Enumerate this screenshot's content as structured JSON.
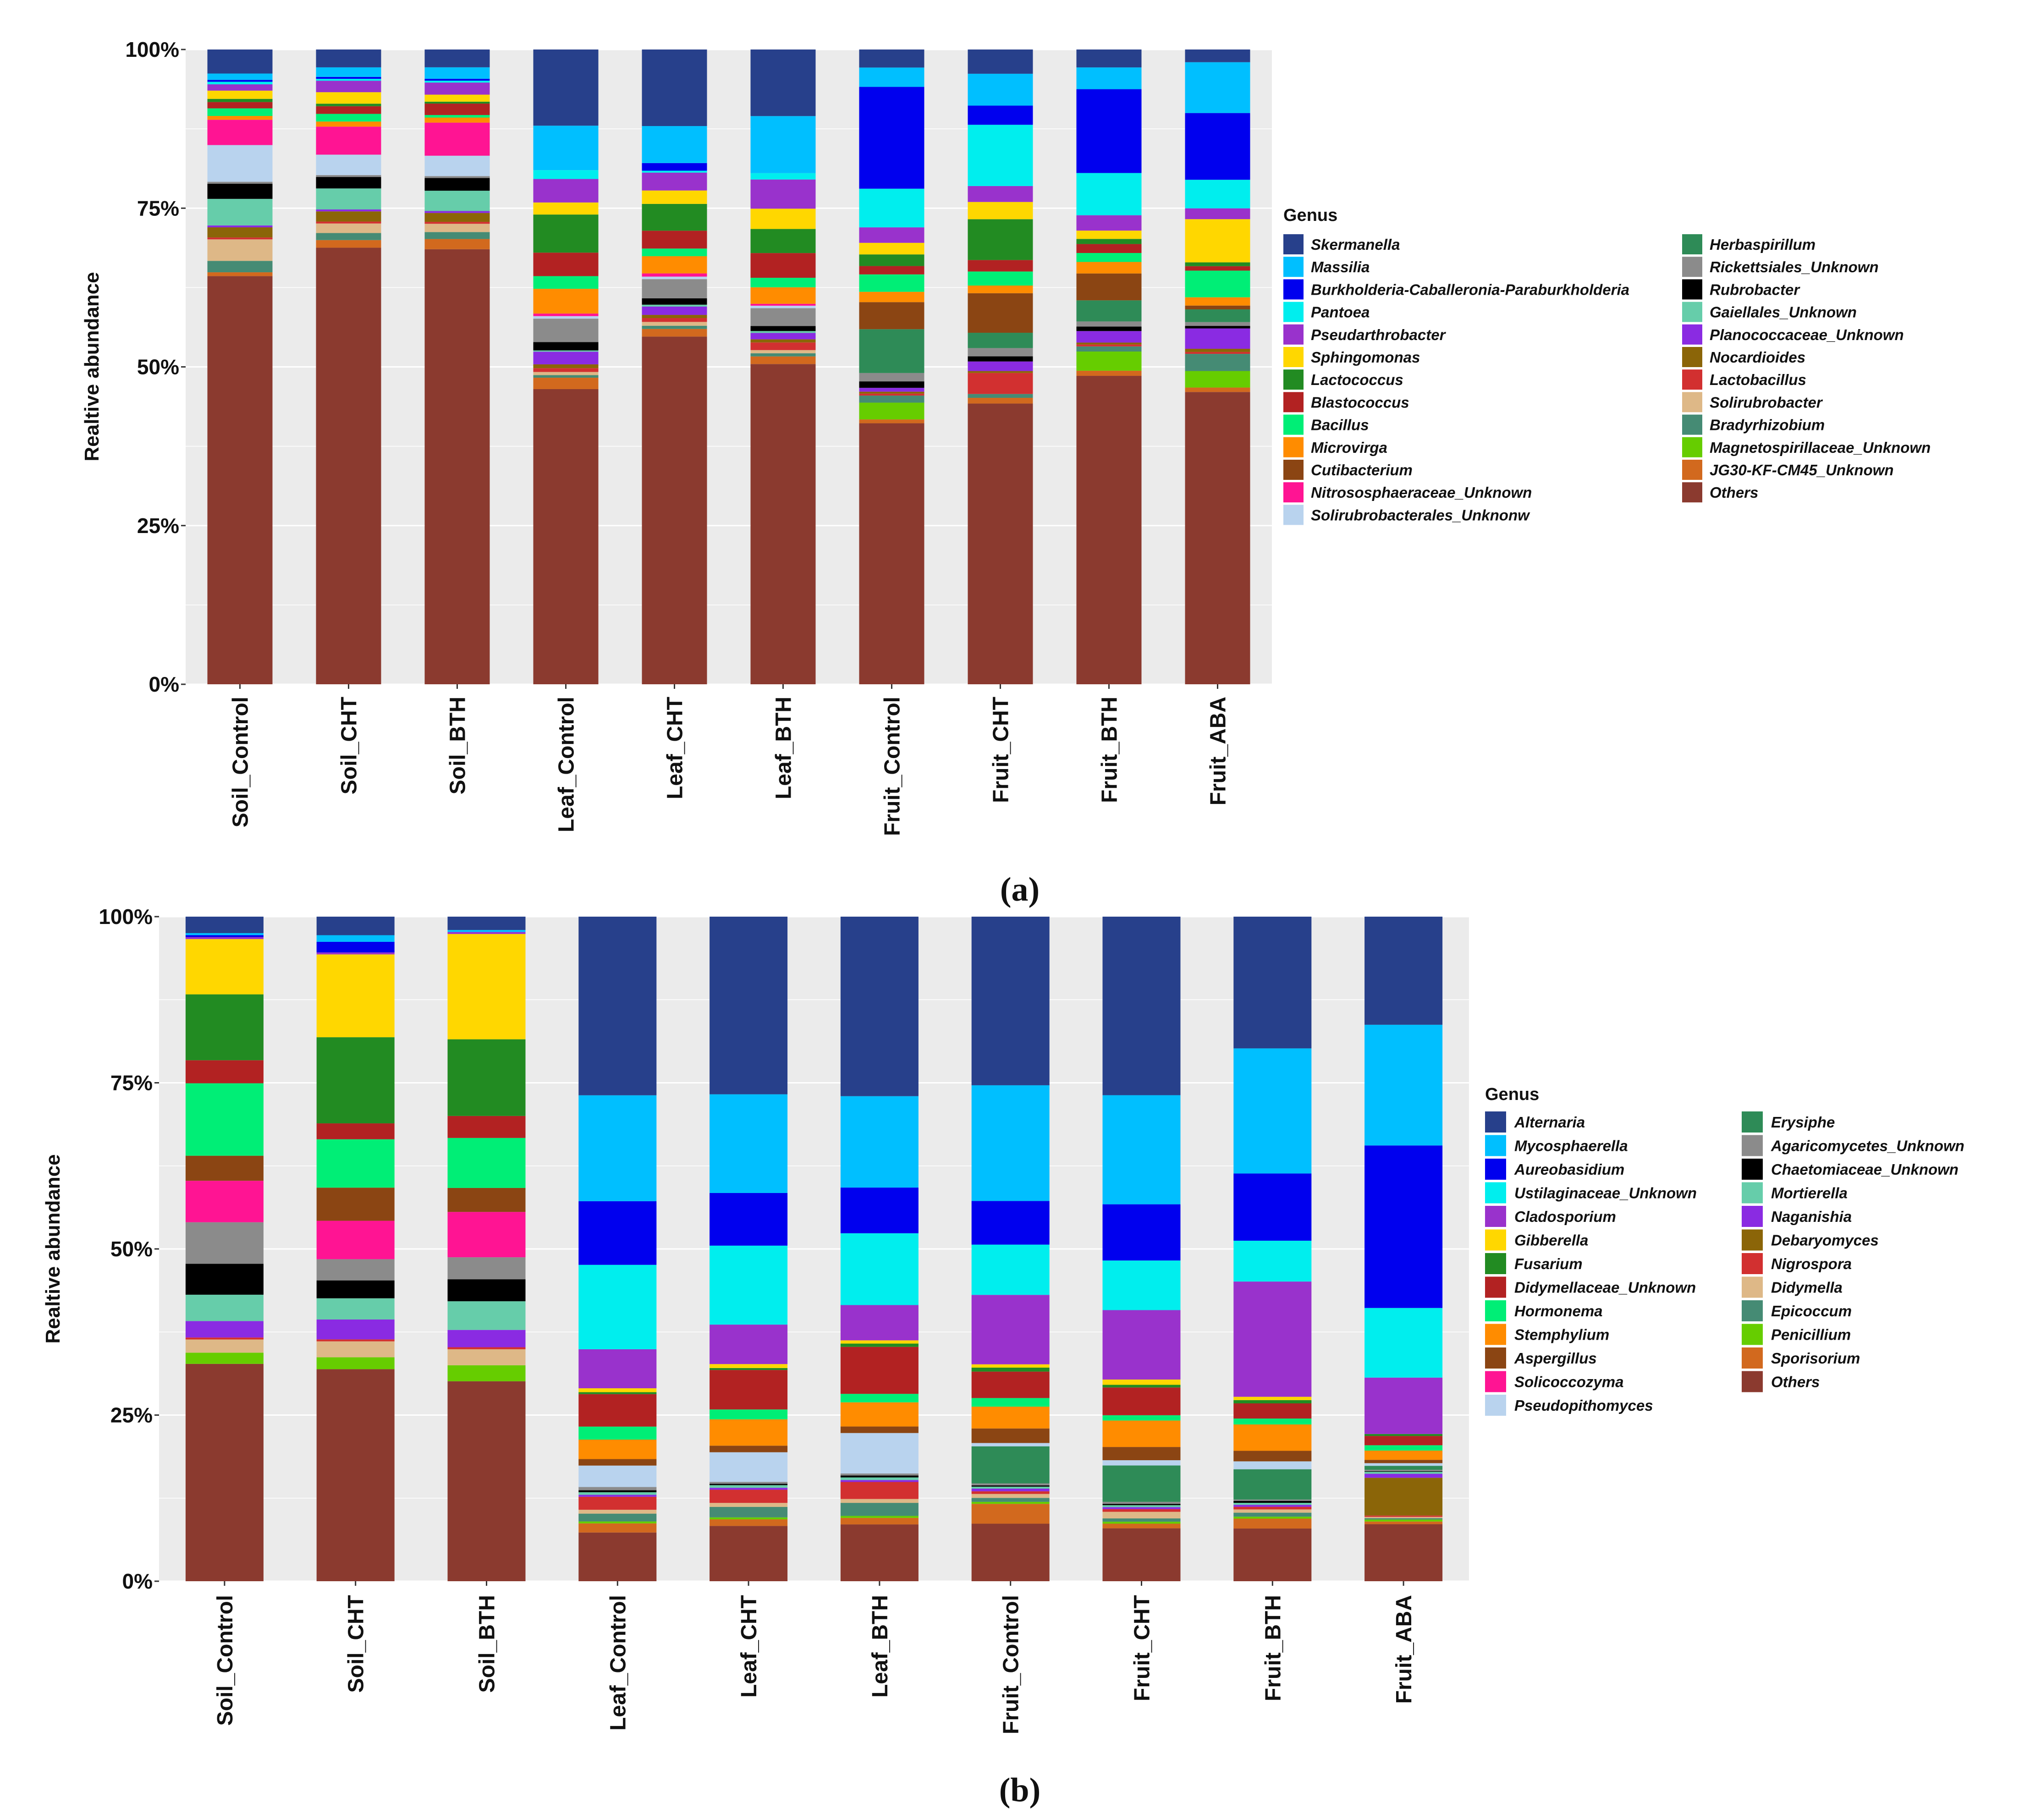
{
  "chart_data": [
    {
      "type": "bar",
      "stacked": true,
      "panel_label": "(a)",
      "ylabel": "Realtive abundance",
      "ylim": [
        0,
        100
      ],
      "yticks": [
        "0%",
        "25%",
        "50%",
        "75%",
        "100%"
      ],
      "legend_title": "Genus",
      "categories": [
        "Soil_Control",
        "Soil_CHT",
        "Soil_BTH",
        "Leaf_Control",
        "Leaf_CHT",
        "Leaf_BTH",
        "Fruit_Control",
        "Fruit_CHT",
        "Fruit_BTH",
        "Fruit_ABA"
      ],
      "legend_order": [
        "Skermanella",
        "Massilia",
        "Burkholderia-Caballeronia-Paraburkholderia",
        "Pantoea",
        "Pseudarthrobacter",
        "Sphingomonas",
        "Lactococcus",
        "Blastococcus",
        "Bacillus",
        "Microvirga",
        "Cutibacterium",
        "Nitrososphaeraceae_Unknown",
        "Solirubrobacterales_Unknonw",
        "Herbaspirillum",
        "Rickettsiales_Unknown",
        "Rubrobacter",
        "Gaiellales_Unknown",
        "Planococcaceae_Unknown",
        "Nocardioides",
        "Lactobacillus",
        "Solirubrobacter",
        "Bradyrhizobium",
        "Magnetospirillaceae_Unknown",
        "JG30-KF-CM45_Unknown",
        "Others"
      ],
      "colors": {
        "Skermanella": "#27408B",
        "Massilia": "#00BFFF",
        "Burkholderia-Caballeronia-Paraburkholderia": "#0000EE",
        "Pantoea": "#00EEEE",
        "Pseudarthrobacter": "#9932CC",
        "Sphingomonas": "#FFD700",
        "Lactococcus": "#228B22",
        "Blastococcus": "#B22222",
        "Bacillus": "#00EE76",
        "Microvirga": "#FF8C00",
        "Cutibacterium": "#8B4513",
        "Nitrososphaeraceae_Unknown": "#FF1493",
        "Solirubrobacterales_Unknonw": "#B9D3EE",
        "Herbaspirillum": "#2E8B57",
        "Rickettsiales_Unknown": "#8B8B8B",
        "Rubrobacter": "#000000",
        "Gaiellales_Unknown": "#66CDAA",
        "Planococcaceae_Unknown": "#8A2BE2",
        "Nocardioides": "#8B6508",
        "Lactobacillus": "#D23030",
        "Solirubrobacter": "#DEB887",
        "Bradyrhizobium": "#458B74",
        "Magnetospirillaceae_Unknown": "#66CD00",
        "JG30-KF-CM45_Unknown": "#D2691E",
        "Others": "#8B3A2F"
      },
      "series": [
        {
          "name": "Skermanella",
          "values": [
            3.8,
            2.8,
            2.8,
            12,
            12,
            10.5,
            2.8,
            3.8,
            2.8,
            2
          ]
        },
        {
          "name": "Massilia",
          "values": [
            1,
            1.5,
            1.8,
            7,
            5.8,
            9,
            3,
            5,
            3.4,
            8
          ]
        },
        {
          "name": "Burkholderia-Caballeronia-Paraburkholderia",
          "values": [
            0.3,
            0.3,
            0.3,
            0,
            1.2,
            0,
            15.8,
            3,
            13.1,
            10.5
          ]
        },
        {
          "name": "Pantoea",
          "values": [
            0.4,
            0.3,
            0.3,
            1.4,
            0.3,
            1,
            6,
            9.6,
            6.6,
            4.5
          ]
        },
        {
          "name": "Pseudarthrobacter",
          "values": [
            1,
            1.8,
            1.9,
            3.7,
            2.8,
            4.6,
            2.4,
            2.5,
            2.4,
            1.7
          ]
        },
        {
          "name": "Sphingomonas",
          "values": [
            1.3,
            1.8,
            1.1,
            1.9,
            2.1,
            3.2,
            1.8,
            2.7,
            1.3,
            6.8
          ]
        },
        {
          "name": "Lactococcus",
          "values": [
            0.5,
            0.4,
            0.3,
            6,
            4.2,
            3.8,
            1.8,
            6.4,
            0.8,
            0.6
          ]
        },
        {
          "name": "Blastococcus",
          "values": [
            1,
            1.2,
            1.8,
            3.7,
            2.8,
            3.9,
            1.3,
            1.8,
            1.4,
            0.7
          ]
        },
        {
          "name": "Bacillus",
          "values": [
            1.2,
            1.2,
            0.4,
            2,
            1.2,
            1.5,
            2.7,
            2.2,
            1.4,
            4.2
          ]
        },
        {
          "name": "Microvirga",
          "values": [
            0.6,
            0.8,
            0.8,
            3.9,
            2.7,
            2.6,
            1.6,
            1.2,
            1.8,
            1.3
          ]
        },
        {
          "name": "Cutibacterium",
          "values": [
            0,
            0,
            0,
            0,
            0,
            0,
            4.2,
            6.2,
            4.2,
            0.6
          ]
        },
        {
          "name": "Nitrososphaeraceae_Unknown",
          "values": [
            4,
            4.4,
            5.2,
            0.4,
            0.5,
            0.3,
            0,
            0,
            0,
            0
          ]
        },
        {
          "name": "Solirubrobacterales_Unknonw",
          "values": [
            5.8,
            3.2,
            3.2,
            0.4,
            0.4,
            0.4,
            0,
            0,
            0,
            0
          ]
        },
        {
          "name": "Herbaspirillum",
          "values": [
            0,
            0,
            0,
            0,
            0,
            0,
            6.8,
            2.4,
            3.3,
            2
          ]
        },
        {
          "name": "Rickettsiales_Unknown",
          "values": [
            0.3,
            0.3,
            0.3,
            3.7,
            3,
            2.8,
            1.3,
            1.3,
            0.8,
            0.6
          ]
        },
        {
          "name": "Rubrobacter",
          "values": [
            2.4,
            1.8,
            2,
            1.3,
            1,
            0.8,
            1,
            0.8,
            0.7,
            0.4
          ]
        },
        {
          "name": "Gaiellales_Unknown",
          "values": [
            4.2,
            3.3,
            3.2,
            0.2,
            0.3,
            0.3,
            0,
            0,
            0,
            0
          ]
        },
        {
          "name": "Planococcaceae_Unknown",
          "values": [
            0.3,
            0.3,
            0.3,
            2,
            1.3,
            1,
            0.6,
            1.5,
            1.8,
            3.2
          ]
        },
        {
          "name": "Nocardioides",
          "values": [
            1.6,
            1.6,
            1.4,
            0.6,
            0.5,
            0.5,
            0.3,
            0.3,
            0.3,
            0.5
          ]
        },
        {
          "name": "Lactobacillus",
          "values": [
            0.3,
            0.3,
            0.3,
            0.6,
            0.6,
            1.2,
            0.3,
            3.3,
            0.3,
            0.3
          ]
        },
        {
          "name": "Solirubrobacter",
          "values": [
            3.4,
            1.5,
            1.3,
            0.5,
            0.6,
            0.5,
            0,
            0,
            0,
            0
          ]
        },
        {
          "name": "Bradyrhizobium",
          "values": [
            1.8,
            1.1,
            1.1,
            0.4,
            0.5,
            0.5,
            1.1,
            0.6,
            0.8,
            2.7
          ]
        },
        {
          "name": "Magnetospirillaceae_Unknown",
          "values": [
            0,
            0,
            0,
            0,
            0,
            0,
            2.6,
            0,
            3,
            2.6
          ]
        },
        {
          "name": "JG30-KF-CM45_Unknown",
          "values": [
            0.6,
            1.2,
            1.6,
            1.8,
            1.2,
            1.2,
            0.6,
            0.9,
            0.8,
            0.7
          ]
        },
        {
          "name": "Others",
          "values": [
            64.5,
            68.5,
            68.4,
            46.5,
            54.5,
            50.5,
            40.5,
            44,
            48.2,
            46
          ]
        }
      ]
    },
    {
      "type": "bar",
      "stacked": true,
      "panel_label": "(b)",
      "ylabel": "Realtive abundance",
      "ylim": [
        0,
        100
      ],
      "yticks": [
        "0%",
        "25%",
        "50%",
        "75%",
        "100%"
      ],
      "legend_title": "Genus",
      "categories": [
        "Soil_Control",
        "Soil_CHT",
        "Soil_BTH",
        "Leaf_Control",
        "Leaf_CHT",
        "Leaf_BTH",
        "Fruit_Control",
        "Fruit_CHT",
        "Fruit_BTH",
        "Fruit_ABA"
      ],
      "legend_order": [
        "Alternaria",
        "Mycosphaerella",
        "Aureobasidium",
        "Ustilaginaceae_Unknown",
        "Cladosporium",
        "Gibberella",
        "Fusarium",
        "Didymellaceae_Unknown",
        "Hormonema",
        "Stemphylium",
        "Aspergillus",
        "Solicoccozyma",
        "Pseudopithomyces",
        "Erysiphe",
        "Agaricomycetes_Unknown",
        "Chaetomiaceae_Unknown",
        "Mortierella",
        "Naganishia",
        "Debaryomyces",
        "Nigrospora",
        "Didymella",
        "Epicoccum",
        "Penicillium",
        "Sporisorium",
        "Others"
      ],
      "colors": {
        "Alternaria": "#27408B",
        "Mycosphaerella": "#00BFFF",
        "Aureobasidium": "#0000EE",
        "Ustilaginaceae_Unknown": "#00EEEE",
        "Cladosporium": "#9932CC",
        "Gibberella": "#FFD700",
        "Fusarium": "#228B22",
        "Didymellaceae_Unknown": "#B22222",
        "Hormonema": "#00EE76",
        "Stemphylium": "#FF8C00",
        "Aspergillus": "#8B4513",
        "Solicoccozyma": "#FF1493",
        "Pseudopithomyces": "#B9D3EE",
        "Erysiphe": "#2E8B57",
        "Agaricomycetes_Unknown": "#8B8B8B",
        "Chaetomiaceae_Unknown": "#000000",
        "Mortierella": "#66CDAA",
        "Naganishia": "#8A2BE2",
        "Debaryomyces": "#8B6508",
        "Nigrospora": "#D23030",
        "Didymella": "#DEB887",
        "Epicoccum": "#458B74",
        "Penicillium": "#66CD00",
        "Sporisorium": "#D2691E",
        "Others": "#8B3A2F"
      },
      "series": [
        {
          "name": "Alternaria",
          "values": [
            2.5,
            2.8,
            2,
            27.5,
            27,
            27.5,
            25.5,
            27,
            20,
            16.3
          ]
        },
        {
          "name": "Mycosphaerella",
          "values": [
            0.3,
            1,
            0.3,
            16.3,
            15,
            14,
            17.5,
            16.5,
            19,
            18.2
          ]
        },
        {
          "name": "Aureobasidium",
          "values": [
            0.3,
            1.6,
            0,
            9.8,
            8,
            7,
            6.6,
            8.5,
            10.2,
            24.5
          ]
        },
        {
          "name": "Ustilaginaceae_Unknown",
          "values": [
            0,
            0,
            0,
            13,
            12,
            11,
            7.6,
            7.5,
            6.2,
            10.5
          ]
        },
        {
          "name": "Cladosporium",
          "values": [
            0.3,
            0.3,
            0.3,
            6,
            6,
            5.4,
            10.5,
            10.5,
            17.5,
            8.5
          ]
        },
        {
          "name": "Gibberella",
          "values": [
            8.4,
            12.5,
            15.8,
            0.6,
            0.6,
            0.5,
            0.5,
            0.8,
            0.5,
            0
          ]
        },
        {
          "name": "Fusarium",
          "values": [
            10,
            13,
            11.5,
            0.3,
            0.3,
            0.5,
            0.6,
            0.4,
            0.5,
            0.3
          ]
        },
        {
          "name": "Didymellaceae_Unknown",
          "values": [
            3.5,
            2.4,
            3.3,
            5,
            6,
            7.2,
            4,
            4.2,
            2.3,
            1.4
          ]
        },
        {
          "name": "Hormonema",
          "values": [
            11,
            7.3,
            7.5,
            2,
            1.5,
            1.3,
            1.3,
            0.8,
            0.9,
            0.8
          ]
        },
        {
          "name": "Stemphylium",
          "values": [
            0,
            0,
            0,
            3,
            4,
            3.7,
            3.3,
            4,
            4,
            1.4
          ]
        },
        {
          "name": "Aspergillus",
          "values": [
            3.8,
            5,
            3.6,
            1,
            1,
            1,
            2.2,
            2,
            1.6,
            0.5
          ]
        },
        {
          "name": "Solicoccozyma",
          "values": [
            6.3,
            5.8,
            6.8,
            0,
            0,
            0,
            0,
            0,
            0,
            0
          ]
        },
        {
          "name": "Pseudopithomyces",
          "values": [
            0,
            0,
            0,
            3.3,
            4.5,
            6.2,
            0.5,
            0.8,
            1.2,
            0.4
          ]
        },
        {
          "name": "Erysiphe",
          "values": [
            0,
            0,
            0,
            0,
            0,
            0,
            5.6,
            5.5,
            4.6,
            0.6
          ]
        },
        {
          "name": "Agaricomycetes_Unknown",
          "values": [
            6.3,
            3.2,
            3.3,
            0.5,
            0.3,
            0.3,
            0.3,
            0.3,
            0.2,
            0.2
          ]
        },
        {
          "name": "Chaetomiaceae_Unknown",
          "values": [
            4.7,
            2.7,
            3.3,
            0.3,
            0.2,
            0.3,
            0.2,
            0.2,
            0.3,
            0.1
          ]
        },
        {
          "name": "Mortierella",
          "values": [
            4,
            3.2,
            4.3,
            0.4,
            0.4,
            0.4,
            0.3,
            0.3,
            0.3,
            0.3
          ]
        },
        {
          "name": "Naganishia",
          "values": [
            2.5,
            3,
            2.6,
            0.3,
            0.3,
            0.3,
            0.4,
            0.3,
            0.3,
            0.6
          ]
        },
        {
          "name": "Debaryomyces",
          "values": [
            0,
            0,
            0,
            0,
            0,
            0,
            0,
            0,
            0,
            5.7
          ]
        },
        {
          "name": "Nigrospora",
          "values": [
            0.3,
            0.3,
            0.3,
            2,
            2,
            2.6,
            0.4,
            0.4,
            0.4,
            0.2
          ]
        },
        {
          "name": "Didymella",
          "values": [
            2,
            2.4,
            2.4,
            0.6,
            0.6,
            0.6,
            0.6,
            1,
            0.5,
            0.2
          ]
        },
        {
          "name": "Epicoccum",
          "values": [
            0,
            0,
            0,
            1.2,
            1.6,
            2,
            0.6,
            0.5,
            0.6,
            0.2
          ]
        },
        {
          "name": "Penicillium",
          "values": [
            1.7,
            1.8,
            2.4,
            0.3,
            0.3,
            0.3,
            0.3,
            0.3,
            0.3,
            0.3
          ]
        },
        {
          "name": "Sporisorium",
          "values": [
            0,
            0,
            0,
            1.4,
            1,
            1,
            3,
            0.7,
            1.5,
            0.4
          ]
        },
        {
          "name": "Others",
          "values": [
            33,
            32,
            30,
            7.5,
            8.4,
            8.7,
            8.7,
            8,
            8,
            8.6
          ]
        }
      ]
    }
  ]
}
